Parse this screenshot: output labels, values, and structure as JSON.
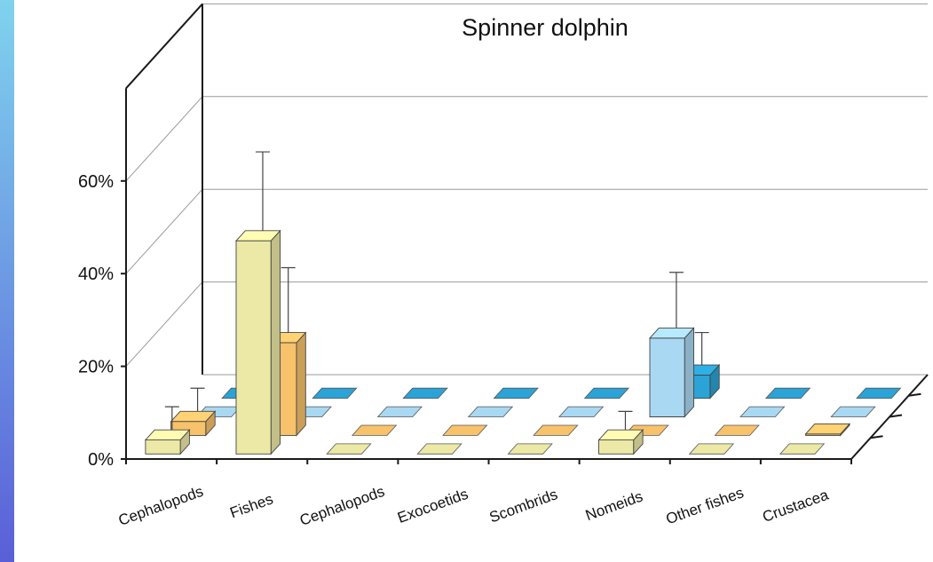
{
  "chart_data": {
    "type": "bar",
    "title": "Spinner dolphin",
    "xlabel": "",
    "ylabel": "",
    "y_ticks": [
      "0%",
      "20%",
      "40%",
      "60%"
    ],
    "ylim": [
      0,
      80
    ],
    "categories": [
      "Cephalopods",
      "Fishes",
      "Cephalopods",
      "Exocoetids",
      "Scombrids",
      "Nomeids",
      "Other fishes",
      "Crustacea"
    ],
    "grid": true,
    "legend": "none",
    "series": [
      {
        "color": "#ece9a6",
        "values": [
          3,
          46,
          0,
          0,
          0,
          3,
          0,
          0
        ],
        "errors": [
          5,
          17,
          null,
          null,
          null,
          4,
          null,
          null
        ]
      },
      {
        "color": "#f8c26b",
        "values": [
          3,
          20,
          0,
          0,
          0,
          0,
          0,
          0.3
        ],
        "errors": [
          5,
          14,
          null,
          null,
          null,
          null,
          null,
          null
        ]
      },
      {
        "color": "#a9d8f2",
        "values": [
          0,
          0,
          0,
          0,
          0,
          17,
          0,
          0
        ],
        "errors": [
          null,
          null,
          null,
          null,
          null,
          12,
          null,
          null
        ]
      },
      {
        "color": "#2ba3d6",
        "values": [
          0,
          0,
          0,
          0,
          0,
          5,
          0,
          0
        ],
        "errors": [
          null,
          null,
          null,
          null,
          null,
          7,
          null,
          null
        ]
      }
    ]
  },
  "decor": {
    "left_strip_top": "#7fd3ee",
    "left_strip_bottom": "#5a5fd8"
  }
}
